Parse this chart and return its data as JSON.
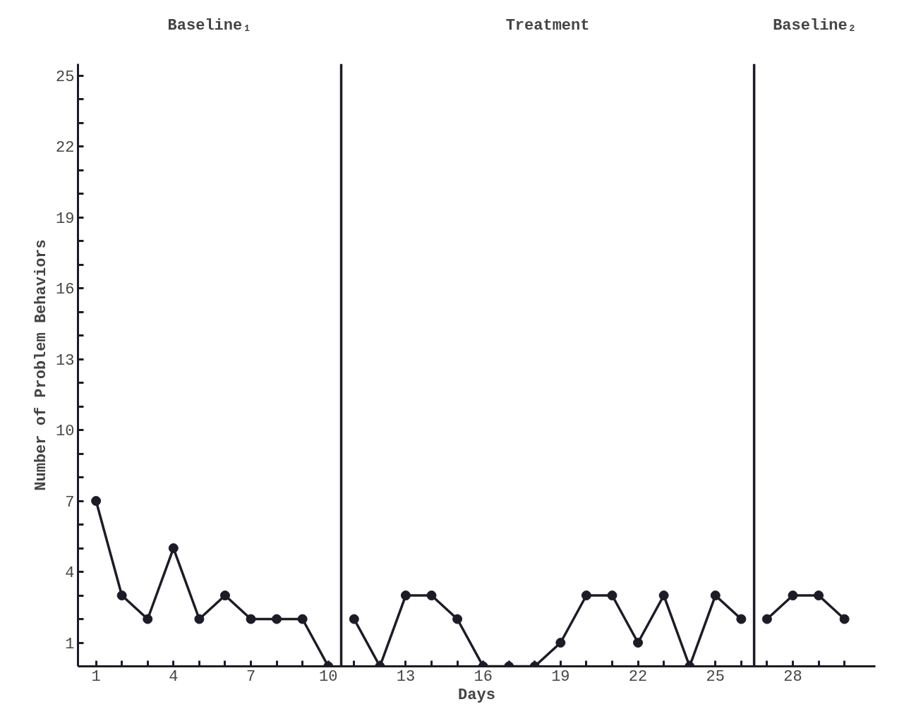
{
  "chart_data": {
    "type": "line",
    "xlabel": "Days",
    "ylabel": "Number of Problem Behaviors",
    "xlim": [
      0.3,
      31.2
    ],
    "ylim": [
      0,
      25.5
    ],
    "xticks": [
      1,
      {
        "value": 2,
        "label": null
      },
      {
        "value": 3,
        "label": null
      },
      4,
      {
        "value": 5,
        "label": null
      },
      {
        "value": 6,
        "label": null
      },
      7,
      {
        "value": 8,
        "label": null
      },
      {
        "value": 9,
        "label": null
      },
      10,
      {
        "value": 11,
        "label": null
      },
      {
        "value": 12,
        "label": null
      },
      13,
      {
        "value": 14,
        "label": null
      },
      {
        "value": 15,
        "label": null
      },
      16,
      {
        "value": 17,
        "label": null
      },
      {
        "value": 18,
        "label": null
      },
      19,
      {
        "value": 20,
        "label": null
      },
      {
        "value": 21,
        "label": null
      },
      22,
      {
        "value": 23,
        "label": null
      },
      {
        "value": 24,
        "label": null
      },
      25,
      {
        "value": 26,
        "label": null
      },
      {
        "value": 27,
        "label": null
      },
      28,
      {
        "value": 29,
        "label": null
      },
      {
        "value": 30,
        "label": null
      }
    ],
    "yticks": [
      1,
      {
        "value": 2,
        "label": null
      },
      {
        "value": 3,
        "label": null
      },
      4,
      {
        "value": 5,
        "label": null
      },
      {
        "value": 6,
        "label": null
      },
      7,
      {
        "value": 8,
        "label": null
      },
      {
        "value": 9,
        "label": null
      },
      10,
      {
        "value": 11,
        "label": null
      },
      {
        "value": 12,
        "label": null
      },
      13,
      {
        "value": 14,
        "label": null
      },
      {
        "value": 15,
        "label": null
      },
      16,
      {
        "value": 17,
        "label": null
      },
      {
        "value": 18,
        "label": null
      },
      19,
      {
        "value": 20,
        "label": null
      },
      {
        "value": 21,
        "label": null
      },
      22,
      {
        "value": 23,
        "label": null
      },
      {
        "value": 24,
        "label": null
      },
      25
    ],
    "series": [
      {
        "color": "#1c1c28",
        "x": [
          1,
          2,
          3,
          4,
          5,
          6,
          7,
          8,
          9,
          10
        ],
        "values": [
          7,
          3,
          2,
          5,
          2,
          3,
          2,
          2,
          2,
          0
        ]
      },
      {
        "color": "#1c1c28",
        "x": [
          11,
          12,
          13,
          14,
          15,
          16,
          17,
          18,
          19,
          20,
          21,
          22,
          23,
          24,
          25,
          26
        ],
        "values": [
          2,
          0,
          3,
          3,
          2,
          0,
          0,
          0,
          1,
          3,
          3,
          1,
          3,
          0,
          3,
          2
        ]
      },
      {
        "color": "#1c1c28",
        "x": [
          27,
          28,
          29,
          30
        ],
        "values": [
          2,
          3,
          3,
          2
        ]
      }
    ],
    "ref_lines": [
      {
        "axis": "x",
        "value": 10.5,
        "color": "#1c1c28"
      },
      {
        "axis": "x",
        "value": 26.5,
        "color": "#1c1c28"
      }
    ],
    "annotations": [
      "Baseline₁",
      "Treatment",
      "Baseline₂"
    ],
    "marker": "circle",
    "line_style": "solid",
    "grid": false
  }
}
